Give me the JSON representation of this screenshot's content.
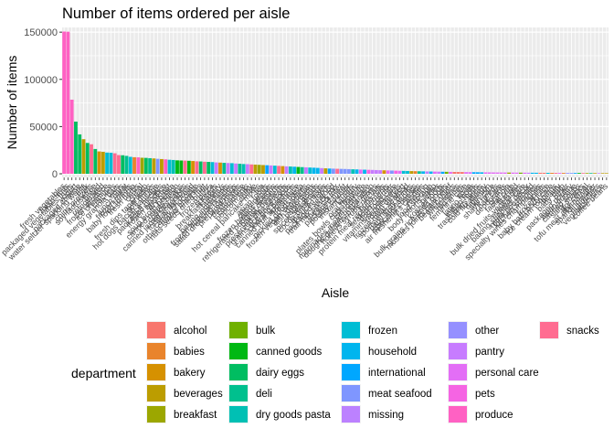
{
  "chart_data": {
    "type": "bar",
    "title": "Number of items ordered per aisle",
    "xlabel": "Aisle",
    "ylabel": "Number of items",
    "ylim": [
      0,
      155000
    ],
    "yticks": [
      0,
      50000,
      100000,
      150000
    ],
    "ytick_labels": [
      "0",
      "50000",
      "100000",
      "150000"
    ],
    "grid": true,
    "legend_position": "bottom",
    "legend_title": "department",
    "departments": [
      {
        "name": "alcohol",
        "color": "#F8766D"
      },
      {
        "name": "babies",
        "color": "#E9842C"
      },
      {
        "name": "bakery",
        "color": "#D69100"
      },
      {
        "name": "beverages",
        "color": "#BC9D00"
      },
      {
        "name": "breakfast",
        "color": "#9CA700"
      },
      {
        "name": "bulk",
        "color": "#6FB000"
      },
      {
        "name": "canned goods",
        "color": "#00B813"
      },
      {
        "name": "dairy eggs",
        "color": "#00BD61"
      },
      {
        "name": "deli",
        "color": "#00C08E"
      },
      {
        "name": "dry goods pasta",
        "color": "#00C0B4"
      },
      {
        "name": "frozen",
        "color": "#00BDD4"
      },
      {
        "name": "household",
        "color": "#00B5EE"
      },
      {
        "name": "international",
        "color": "#00A7FF"
      },
      {
        "name": "meat seafood",
        "color": "#7F96FF"
      },
      {
        "name": "missing",
        "color": "#BC81FF"
      },
      {
        "name": "other",
        "color": "#9590FF"
      },
      {
        "name": "pantry",
        "color": "#C77CFF"
      },
      {
        "name": "personal care",
        "color": "#E36EF6"
      },
      {
        "name": "pets",
        "color": "#F564E3"
      },
      {
        "name": "produce",
        "color": "#FF61C3"
      },
      {
        "name": "snacks",
        "color": "#FF6C91"
      }
    ],
    "categories": [
      "fresh vegetables",
      "fresh fruits",
      "packaged vegetables fruits",
      "yogurt",
      "packaged cheese",
      "water seltzer sparkling water",
      "milk",
      "chips pretzels",
      "soy lactosefree",
      "bread",
      "refrigerated",
      "frozen produce",
      "ice cream ice",
      "crackers",
      "energy granola bars",
      "eggs",
      "lunch meat",
      "frozen meals",
      "baby food formula",
      "fresh herbs",
      "cereal",
      "cream",
      "fresh dips tapenades",
      "soft drinks",
      "hot dogs bacon sausage",
      "juice nectars",
      "packaged produce",
      "frozen breakfast",
      "dry pasta",
      "soup broth bouillon",
      "canned meals beans",
      "cookies cakes",
      "canned jarred vegetables",
      "tortillas flat bread",
      "candy chocolate",
      "other creams cheeses",
      "nuts seeds dried fruit",
      "butter",
      "frozen pizza",
      "spreads",
      "breakfast bakery",
      "hummus",
      "baking ingredients",
      "frozen appetizers sides",
      "salad dressing toppings",
      "prepared meals",
      "pasta sauce",
      "condiments",
      "popcorn jerky",
      "coffee",
      "hot cereal pancake mixes",
      "tea",
      "asian foods",
      "oils vinegars",
      "frozen breads doughs",
      "refrigerated pudding desserts",
      "bakery desserts",
      "preserved dips spreads",
      "grains rice dried goods",
      "cleaning products",
      "canned fruit applesauce",
      "fresh pasta",
      "pickled goods olives",
      "frozen vegan vegetarian",
      "dish detergents",
      "paper goods",
      "spices seasonings",
      "cocoa drink mixes",
      "mexican foods",
      "packaged seafood",
      "trail mix snack mix",
      "meat counter",
      "packaged meat",
      "poultry counter",
      "instant foods",
      "laundry",
      "oral hygiene",
      "plates bowls cups flatware",
      "cat food care",
      "marinades meat preparation",
      "doughs gelatins bake mixes",
      "honeys syrups nectars",
      "buns rolls",
      "protein meal replacements",
      "seafood counter",
      "dog food care",
      "vitamins supplements",
      "frozen dessert",
      "frozen meat seafood",
      "sports energy drinks",
      "baby accessories",
      "specialty cheeses",
      "air fresheners candles",
      "missing",
      "food storage",
      "body lotions soap",
      "pickles",
      "kosher foods",
      "bulk grains rice dried goods",
      "muscles joints pain relief",
      "beers coolers",
      "white wines",
      "red wines",
      "feminine care",
      "soap",
      "latino foods",
      "indian foods",
      "trash bags liners",
      "cold flu allergy",
      "digestion",
      "skin care",
      "shave needs",
      "hair care",
      "deodorants",
      "granola",
      "facial care",
      "first aid",
      "bulk dried fruits vegetables",
      "eye ear care",
      "baking supplies decor",
      "more household",
      "kitchen supplies",
      "specialty wines champagnes",
      "spirits",
      "frozen juice",
      "baby bath body care",
      "ice cream toppings",
      "beauty",
      "baby bath",
      "other",
      "packaged poultry",
      "asian cuisine",
      "canned soups",
      "salty snacks",
      "dry cereal",
      "tofu meat alternatives",
      "sparkling water",
      "nut butters",
      "vegetable juice",
      "coffee beans"
    ],
    "dept_index": [
      19,
      19,
      19,
      7,
      7,
      3,
      7,
      20,
      7,
      2,
      3,
      10,
      10,
      20,
      20,
      7,
      8,
      10,
      1,
      19,
      4,
      7,
      8,
      3,
      13,
      3,
      19,
      10,
      9,
      6,
      6,
      20,
      6,
      2,
      20,
      7,
      20,
      7,
      10,
      16,
      2,
      8,
      16,
      10,
      16,
      8,
      9,
      16,
      20,
      3,
      4,
      3,
      12,
      16,
      10,
      20,
      2,
      16,
      9,
      11,
      6,
      8,
      16,
      10,
      11,
      11,
      16,
      3,
      12,
      13,
      20,
      13,
      13,
      13,
      9,
      11,
      17,
      11,
      18,
      16,
      16,
      16,
      2,
      17,
      13,
      18,
      17,
      10,
      10,
      3,
      1,
      8,
      11,
      14,
      11,
      17,
      16,
      12,
      5,
      17,
      0,
      0,
      0,
      17,
      17,
      12,
      12,
      11,
      17,
      17,
      17,
      17,
      17,
      17,
      4,
      17,
      17,
      5,
      17,
      16,
      11,
      11,
      0,
      0,
      10,
      1,
      20,
      17,
      1,
      15,
      13,
      12,
      6,
      20,
      4,
      8,
      3,
      16,
      3,
      3
    ],
    "values": [
      150609,
      150473,
      78493,
      55240,
      41699,
      36617,
      32644,
      31269,
      26240,
      23635,
      23228,
      22427,
      22284,
      21713,
      19812,
      19599,
      18971,
      17935,
      17534,
      17407,
      16960,
      16820,
      16520,
      16234,
      15841,
      15568,
      15299,
      14838,
      14589,
      14215,
      14045,
      13963,
      13762,
      13500,
      13195,
      13037,
      12756,
      12564,
      12388,
      12021,
      11840,
      11568,
      11403,
      11231,
      10870,
      10618,
      10301,
      10180,
      9898,
      9687,
      9467,
      9225,
      9035,
      8819,
      8587,
      8356,
      8107,
      7852,
      7691,
      7467,
      7221,
      7028,
      6831,
      6602,
      6427,
      6203,
      5986,
      5750,
      5531,
      5412,
      5270,
      5165,
      5048,
      4907,
      4725,
      4601,
      4458,
      4318,
      4189,
      4069,
      3919,
      3785,
      3636,
      3528,
      3424,
      3285,
      3167,
      3045,
      2940,
      2829,
      2737,
      2640,
      2557,
      2479,
      2395,
      2304,
      2227,
      2148,
      2078,
      2011,
      1946,
      1889,
      1832,
      1778,
      1716,
      1664,
      1612,
      1560,
      1511,
      1469,
      1431,
      1390,
      1352,
      1318,
      1285,
      1249,
      1214,
      1181,
      1152,
      1118,
      1089,
      1058,
      1032,
      1007,
      982,
      953,
      927,
      902,
      878,
      858,
      832,
      809,
      790,
      768,
      745,
      722,
      700,
      680,
      660,
      640
    ]
  }
}
